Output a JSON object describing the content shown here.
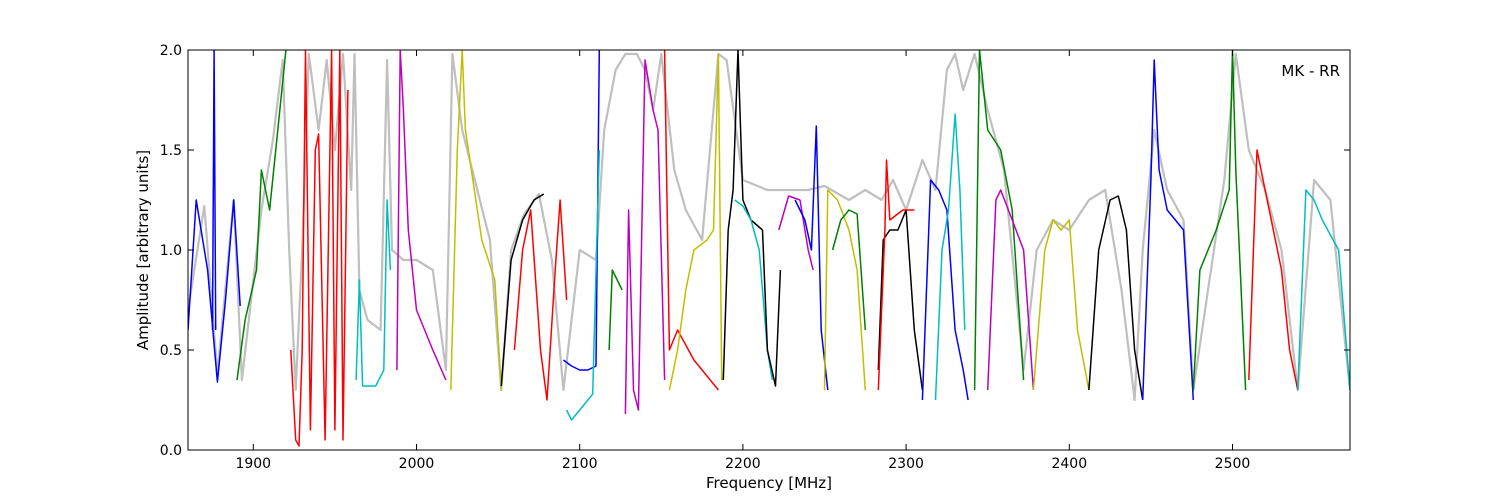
{
  "chart_data": {
    "type": "line",
    "annotation": "MK - RR",
    "xlabel": "Frequency [MHz]",
    "ylabel": "Amplitude [arbitrary units]",
    "xlim": [
      1860,
      2572
    ],
    "ylim": [
      0.0,
      2.0
    ],
    "x_ticks": [
      1900,
      2000,
      2100,
      2200,
      2300,
      2400,
      2500
    ],
    "y_ticks": [
      0.0,
      0.5,
      1.0,
      1.5,
      2.0
    ],
    "x_tick_labels": [
      "1900",
      "2000",
      "2100",
      "2200",
      "2300",
      "2400",
      "2500"
    ],
    "y_tick_labels": [
      "0.0",
      "0.5",
      "1.0",
      "1.5",
      "2.0"
    ],
    "grid": false,
    "colors": {
      "background_spectrum": "#bfbfbf",
      "blue": "#0000ff",
      "green": "#008000",
      "red": "#ff0000",
      "cyan": "#00bfbf",
      "magenta": "#bf00bf",
      "olive": "#bfbf00",
      "black": "#000000"
    },
    "background_series": {
      "color": "#bfbfbf",
      "x": [
        1860,
        1870,
        1878,
        1888,
        1893,
        1905,
        1912,
        1918,
        1922,
        1926,
        1930,
        1934,
        1940,
        1945,
        1950,
        1955,
        1960,
        1962,
        1965,
        1970,
        1978,
        1982,
        1985,
        1992,
        2000,
        2010,
        2018,
        2022,
        2028,
        2045,
        2052,
        2058,
        2066,
        2075,
        2083,
        2090,
        2100,
        2110,
        2115,
        2122,
        2128,
        2135,
        2140,
        2145,
        2150,
        2158,
        2165,
        2175,
        2185,
        2190,
        2200,
        2215,
        2225,
        2240,
        2250,
        2265,
        2275,
        2285,
        2292,
        2300,
        2310,
        2318,
        2325,
        2330,
        2335,
        2342,
        2350,
        2360,
        2372,
        2380,
        2390,
        2400,
        2412,
        2422,
        2432,
        2440,
        2445,
        2452,
        2460,
        2470,
        2476,
        2485,
        2495,
        2502,
        2510,
        2520,
        2530,
        2540,
        2550,
        2560,
        2572
      ],
      "y": [
        0.7,
        1.22,
        0.38,
        1.25,
        0.35,
        1.2,
        1.55,
        1.95,
        1.0,
        0.3,
        1.0,
        1.98,
        1.6,
        1.95,
        1.5,
        1.98,
        1.3,
        1.98,
        0.8,
        0.65,
        0.6,
        1.95,
        1.0,
        0.95,
        0.95,
        0.9,
        0.4,
        1.98,
        1.6,
        1.05,
        0.3,
        1.0,
        1.18,
        1.28,
        0.95,
        0.3,
        1.0,
        0.95,
        1.6,
        1.9,
        1.98,
        1.98,
        1.9,
        1.7,
        1.98,
        1.4,
        1.2,
        1.05,
        1.98,
        1.95,
        1.35,
        1.3,
        1.3,
        1.3,
        1.32,
        1.25,
        1.3,
        1.25,
        1.35,
        1.2,
        1.45,
        1.3,
        1.9,
        1.98,
        1.8,
        1.98,
        1.7,
        1.4,
        0.4,
        1.0,
        1.15,
        1.1,
        1.25,
        1.3,
        0.8,
        0.25,
        1.0,
        1.6,
        1.3,
        1.15,
        0.3,
        0.8,
        1.35,
        1.98,
        1.5,
        1.3,
        1.0,
        0.3,
        1.35,
        1.25,
        0.3
      ]
    },
    "series": [
      {
        "color": "#0000ff",
        "x": [
          1860,
          1865,
          1872,
          1878,
          1883,
          1888,
          1892
        ],
        "y": [
          0.6,
          1.25,
          0.9,
          0.34,
          0.75,
          1.25,
          0.72
        ]
      },
      {
        "color": "#0000ff",
        "x": [
          1875,
          1876,
          1877
        ],
        "y": [
          0.6,
          2.0,
          0.6
        ]
      },
      {
        "color": "#008000",
        "x": [
          1890,
          1895,
          1902,
          1905,
          1910,
          1915,
          1920
        ],
        "y": [
          0.35,
          0.65,
          0.9,
          1.4,
          1.2,
          1.6,
          2.0
        ]
      },
      {
        "color": "#ff0000",
        "x": [
          1923,
          1926,
          1928,
          1930,
          1932,
          1935,
          1938,
          1940,
          1944,
          1948,
          1950,
          1953,
          1955,
          1958
        ],
        "y": [
          0.5,
          0.05,
          0.02,
          0.5,
          2.0,
          0.1,
          1.5,
          1.58,
          0.05,
          2.0,
          0.1,
          2.0,
          0.05,
          1.8
        ]
      },
      {
        "color": "#00bfbf",
        "x": [
          1963,
          1965,
          1967,
          1975,
          1980,
          1982,
          1984
        ],
        "y": [
          0.35,
          0.85,
          0.32,
          0.32,
          0.4,
          1.25,
          0.9
        ]
      },
      {
        "color": "#bf00bf",
        "x": [
          1988,
          1990,
          1992,
          1995,
          2000,
          2010,
          2018
        ],
        "y": [
          0.4,
          2.0,
          1.7,
          1.1,
          0.7,
          0.5,
          0.35
        ]
      },
      {
        "color": "#bfbf00",
        "x": [
          2021,
          2025,
          2028,
          2030,
          2040,
          2048,
          2052
        ],
        "y": [
          0.3,
          1.5,
          2.0,
          1.6,
          1.05,
          0.85,
          0.3
        ]
      },
      {
        "color": "#000000",
        "x": [
          2052,
          2058,
          2065,
          2072,
          2078
        ],
        "y": [
          0.32,
          0.95,
          1.15,
          1.25,
          1.28
        ]
      },
      {
        "color": "#ff0000",
        "x": [
          2060,
          2065,
          2070,
          2076,
          2080,
          2085,
          2088,
          2092
        ],
        "y": [
          0.5,
          1.0,
          1.2,
          0.5,
          0.25,
          0.9,
          1.25,
          0.75
        ]
      },
      {
        "color": "#0000ff",
        "x": [
          2090,
          2095,
          2100,
          2105,
          2110,
          2112
        ],
        "y": [
          0.45,
          0.42,
          0.4,
          0.4,
          0.42,
          2.0
        ]
      },
      {
        "color": "#00bfbf",
        "x": [
          2092,
          2095,
          2100,
          2108,
          2112
        ],
        "y": [
          0.2,
          0.15,
          0.2,
          0.28,
          1.5
        ]
      },
      {
        "color": "#008000",
        "x": [
          2118,
          2120,
          2123,
          2126
        ],
        "y": [
          0.5,
          0.9,
          0.85,
          0.8
        ]
      },
      {
        "color": "#bf00bf",
        "x": [
          2128,
          2130,
          2133,
          2136,
          2140,
          2145,
          2148,
          2152
        ],
        "y": [
          0.18,
          1.2,
          0.3,
          0.2,
          1.95,
          1.7,
          1.6,
          0.35
        ]
      },
      {
        "color": "#ff0000",
        "x": [
          2152,
          2155,
          2160,
          2170,
          2180,
          2185
        ],
        "y": [
          2.0,
          0.5,
          0.6,
          0.45,
          0.35,
          0.3
        ]
      },
      {
        "color": "#bfbf00",
        "x": [
          2155,
          2160,
          2165,
          2170,
          2178,
          2182,
          2185,
          2187
        ],
        "y": [
          0.3,
          0.5,
          0.8,
          1.0,
          1.05,
          1.1,
          1.98,
          0.35
        ]
      },
      {
        "color": "#000000",
        "x": [
          2188,
          2191,
          2194,
          2197,
          2200,
          2205,
          2212
        ],
        "y": [
          0.35,
          1.1,
          1.3,
          2.0,
          1.25,
          1.15,
          1.1
        ]
      },
      {
        "color": "#00bfbf",
        "x": [
          2195,
          2200,
          2205,
          2210,
          2215,
          2218
        ],
        "y": [
          1.25,
          1.22,
          1.15,
          1.0,
          0.5,
          0.35
        ]
      },
      {
        "color": "#000000",
        "x": [
          2212,
          2215,
          2220,
          2223
        ],
        "y": [
          1.1,
          0.5,
          0.32,
          0.9
        ]
      },
      {
        "color": "#bf00bf",
        "x": [
          2222,
          2228,
          2235,
          2240,
          2243
        ],
        "y": [
          1.1,
          1.27,
          1.25,
          1.0,
          0.9
        ]
      },
      {
        "color": "#0000ff",
        "x": [
          2232,
          2238,
          2242,
          2245,
          2248,
          2252
        ],
        "y": [
          1.25,
          1.15,
          1.0,
          1.62,
          0.6,
          0.3
        ]
      },
      {
        "color": "#bfbf00",
        "x": [
          2250,
          2252,
          2258,
          2265,
          2270,
          2275
        ],
        "y": [
          0.3,
          1.3,
          1.25,
          1.1,
          0.9,
          0.3
        ]
      },
      {
        "color": "#008000",
        "x": [
          2255,
          2260,
          2265,
          2270,
          2275
        ],
        "y": [
          1.0,
          1.15,
          1.2,
          1.18,
          0.6
        ]
      },
      {
        "color": "#000000",
        "x": [
          2283,
          2286,
          2290,
          2295,
          2300,
          2305,
          2310
        ],
        "y": [
          0.4,
          1.05,
          1.1,
          1.1,
          1.2,
          0.6,
          0.3
        ]
      },
      {
        "color": "#ff0000",
        "x": [
          2283,
          2287,
          2288,
          2290,
          2298,
          2305
        ],
        "y": [
          0.3,
          1.1,
          1.45,
          1.15,
          1.2,
          1.2
        ]
      },
      {
        "color": "#0000ff",
        "x": [
          2310,
          2315,
          2320,
          2325,
          2330,
          2335,
          2338
        ],
        "y": [
          0.25,
          1.35,
          1.3,
          1.2,
          0.6,
          0.4,
          0.25
        ]
      },
      {
        "color": "#00bfbf",
        "x": [
          2318,
          2322,
          2326,
          2330,
          2333,
          2336
        ],
        "y": [
          0.25,
          1.0,
          1.2,
          1.68,
          1.3,
          0.6
        ]
      },
      {
        "color": "#008000",
        "x": [
          2342,
          2345,
          2350,
          2358,
          2365,
          2372
        ],
        "y": [
          0.3,
          2.0,
          1.6,
          1.5,
          1.2,
          0.35
        ]
      },
      {
        "color": "#bf00bf",
        "x": [
          2350,
          2355,
          2358,
          2365,
          2372,
          2378
        ],
        "y": [
          0.3,
          1.25,
          1.3,
          1.15,
          1.0,
          0.3
        ]
      },
      {
        "color": "#bfbf00",
        "x": [
          2378,
          2385,
          2390,
          2395,
          2400,
          2405,
          2412
        ],
        "y": [
          0.3,
          1.0,
          1.15,
          1.1,
          1.15,
          0.6,
          0.3
        ]
      },
      {
        "color": "#000000",
        "x": [
          2412,
          2418,
          2425,
          2430,
          2435,
          2440,
          2445
        ],
        "y": [
          0.3,
          1.0,
          1.25,
          1.27,
          1.1,
          0.5,
          0.25
        ]
      },
      {
        "color": "#0000ff",
        "x": [
          2445,
          2450,
          2452,
          2455,
          2460,
          2470,
          2476
        ],
        "y": [
          0.25,
          1.35,
          1.95,
          1.4,
          1.2,
          1.1,
          0.25
        ]
      },
      {
        "color": "#008000",
        "x": [
          2476,
          2480,
          2490,
          2498,
          2500,
          2502,
          2508
        ],
        "y": [
          0.3,
          0.9,
          1.1,
          1.3,
          2.0,
          1.4,
          0.3
        ]
      },
      {
        "color": "#ff0000",
        "x": [
          2510,
          2515,
          2520,
          2525,
          2530,
          2535,
          2540
        ],
        "y": [
          0.35,
          1.5,
          1.3,
          1.1,
          0.9,
          0.5,
          0.3
        ]
      },
      {
        "color": "#00bfbf",
        "x": [
          2540,
          2545,
          2550,
          2555,
          2565,
          2572
        ],
        "y": [
          0.3,
          1.3,
          1.25,
          1.15,
          1.0,
          0.3
        ]
      }
    ]
  }
}
